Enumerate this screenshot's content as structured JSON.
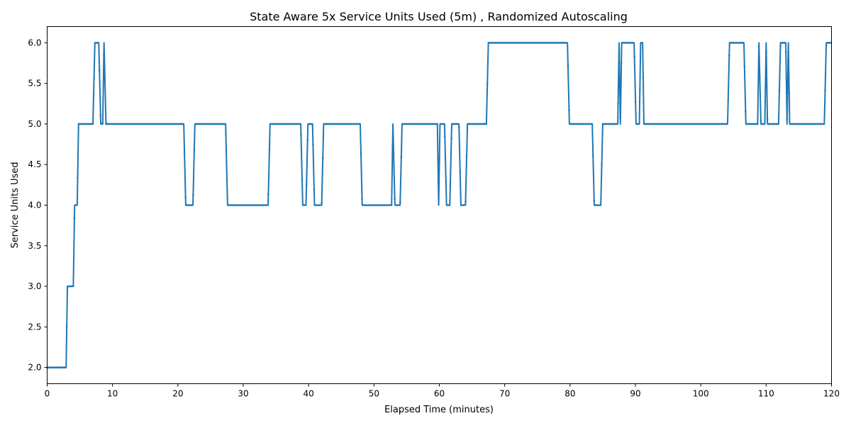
{
  "chart_data": {
    "type": "line",
    "title": "State Aware 5x Service Units Used (5m) , Randomized Autoscaling",
    "xlabel": "Elapsed Time (minutes)",
    "ylabel": "Service Units Used",
    "xlim": [
      0,
      120
    ],
    "ylim": [
      1.8,
      6.2
    ],
    "xticks": [
      0,
      10,
      20,
      30,
      40,
      50,
      60,
      70,
      80,
      90,
      100,
      110,
      120
    ],
    "yticks": [
      2.0,
      2.5,
      3.0,
      3.5,
      4.0,
      4.5,
      5.0,
      5.5,
      6.0
    ],
    "xtick_labels": [
      "0",
      "10",
      "20",
      "30",
      "40",
      "50",
      "60",
      "70",
      "80",
      "90",
      "100",
      "110",
      "120"
    ],
    "ytick_labels": [
      "2.0",
      "2.5",
      "3.0",
      "3.5",
      "4.0",
      "4.5",
      "5.0",
      "5.5",
      "6.0"
    ],
    "grid": false,
    "color": "#1f77b4",
    "marker": "dot",
    "sample_interval_minutes": 0.1667,
    "series": [
      {
        "name": "",
        "x": [
          0,
          2.9,
          3.1,
          4.0,
          4.2,
          4.6,
          4.8,
          7.0,
          7.3,
          7.9,
          8.2,
          8.5,
          8.7,
          9.0,
          9.3,
          20.9,
          21.2,
          22.3,
          22.6,
          27.3,
          27.6,
          33.8,
          34.1,
          38.8,
          39.1,
          39.6,
          39.9,
          40.6,
          40.9,
          42.0,
          42.3,
          47.9,
          48.2,
          52.7,
          52.9,
          53.2,
          53.4,
          54.0,
          54.3,
          59.7,
          59.9,
          60.1,
          60.3,
          60.8,
          61.1,
          61.6,
          61.9,
          63.0,
          63.3,
          64.0,
          64.3,
          67.2,
          67.5,
          79.6,
          79.9,
          83.4,
          83.7,
          84.7,
          85.0,
          87.3,
          87.5,
          87.7,
          87.9,
          89.8,
          90.1,
          90.6,
          90.8,
          91.1,
          91.3,
          104.1,
          104.4,
          106.6,
          106.9,
          108.7,
          108.9,
          109.2,
          109.4,
          109.8,
          110.0,
          110.2,
          110.4,
          111.9,
          112.2,
          113.0,
          113.2,
          113.4,
          113.6,
          118.9,
          119.2,
          120
        ],
        "y": [
          2,
          2,
          3,
          3,
          4,
          4,
          5,
          5,
          6,
          6,
          5,
          5,
          6,
          5,
          5,
          5,
          4,
          4,
          5,
          5,
          4,
          4,
          5,
          5,
          4,
          4,
          5,
          5,
          4,
          4,
          5,
          5,
          4,
          4,
          5,
          4,
          4,
          4,
          5,
          5,
          4,
          5,
          5,
          5,
          4,
          4,
          5,
          5,
          4,
          4,
          5,
          5,
          6,
          6,
          5,
          5,
          4,
          4,
          5,
          5,
          6,
          5,
          6,
          6,
          5,
          5,
          6,
          6,
          5,
          5,
          6,
          6,
          5,
          5,
          6,
          5,
          5,
          5,
          6,
          5,
          5,
          5,
          6,
          6,
          5,
          6,
          5,
          5,
          6,
          6
        ]
      }
    ]
  }
}
